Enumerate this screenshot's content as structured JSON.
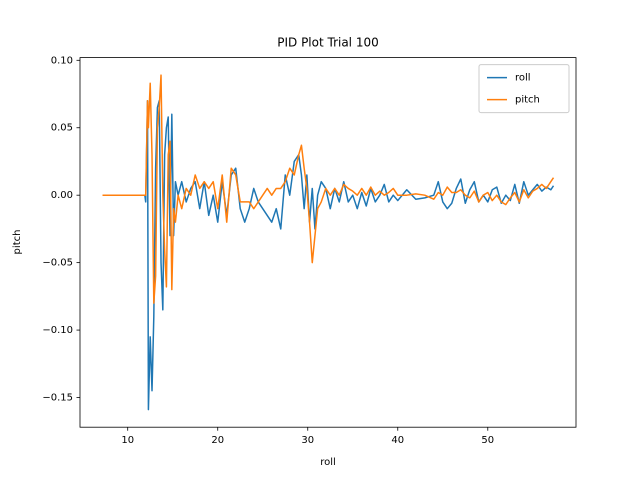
{
  "chart_data": {
    "type": "line",
    "title": "PID Plot Trial 100",
    "x_label": "roll",
    "y_label": "pitch",
    "x": [
      7.2,
      11.9,
      12.0,
      12.2,
      12.3,
      12.5,
      12.7,
      12.9,
      13.1,
      13.3,
      13.5,
      13.7,
      13.9,
      14.1,
      14.3,
      14.5,
      14.7,
      14.9,
      15.1,
      15.3,
      15.6,
      16.0,
      16.5,
      17.0,
      17.5,
      18.0,
      18.5,
      19.0,
      19.5,
      20.0,
      20.5,
      21.0,
      21.5,
      22.0,
      22.5,
      23.0,
      23.5,
      24.0,
      24.5,
      25.0,
      25.5,
      26.0,
      26.5,
      27.0,
      27.5,
      28.0,
      28.5,
      29.0,
      29.3,
      29.6,
      29.9,
      30.2,
      30.5,
      30.8,
      31.1,
      31.5,
      32.0,
      32.5,
      33.0,
      33.5,
      34.0,
      34.5,
      35.0,
      35.5,
      36.0,
      36.5,
      37.0,
      37.5,
      38.0,
      38.5,
      39.0,
      39.5,
      40.0,
      41.0,
      42.0,
      43.0,
      44.0,
      44.5,
      45.0,
      45.5,
      46.0,
      46.5,
      47.0,
      47.5,
      48.0,
      48.5,
      49.0,
      49.5,
      50.0,
      50.5,
      51.0,
      51.5,
      52.0,
      52.5,
      53.0,
      53.5,
      54.0,
      54.5,
      55.0,
      55.5,
      56.0,
      56.5,
      57.0,
      57.3
    ],
    "series": [
      {
        "name": "roll",
        "color": "#1f77b4",
        "values": [
          0,
          0,
          -0.005,
          0.07,
          -0.159,
          -0.105,
          -0.145,
          -0.09,
          0.02,
          0.065,
          0.07,
          -0.05,
          -0.085,
          0.03,
          0.05,
          0.058,
          -0.03,
          0.06,
          -0.03,
          0.01,
          0.0,
          0.01,
          -0.005,
          0.005,
          0.01,
          -0.01,
          0.01,
          -0.015,
          0.0,
          -0.02,
          0.01,
          -0.015,
          0.015,
          0.02,
          -0.01,
          -0.02,
          -0.01,
          0.005,
          -0.005,
          -0.01,
          -0.015,
          -0.02,
          -0.01,
          -0.025,
          0.015,
          0.0,
          0.025,
          0.03,
          0.015,
          -0.01,
          0.015,
          -0.02,
          0.005,
          -0.025,
          0.0,
          0.01,
          0.005,
          -0.01,
          0.005,
          -0.005,
          0.01,
          -0.005,
          0.0,
          -0.01,
          0.002,
          -0.008,
          0.005,
          -0.005,
          0.0,
          0.008,
          -0.005,
          0.0,
          -0.004,
          0.004,
          -0.003,
          -0.002,
          0.0,
          0.01,
          -0.005,
          -0.01,
          -0.006,
          0.005,
          0.012,
          -0.006,
          0.004,
          0.01,
          -0.005,
          0.0,
          -0.005,
          0.004,
          0.006,
          -0.006,
          0.0,
          -0.004,
          0.008,
          -0.006,
          0.01,
          0.0,
          0.004,
          0.008,
          0.003,
          0.006,
          0.004,
          0.007
        ]
      },
      {
        "name": "pitch",
        "color": "#ff7f0e",
        "values": [
          0,
          0,
          0.0,
          0.07,
          0.05,
          0.083,
          0.03,
          -0.08,
          -0.06,
          0.05,
          0.065,
          0.089,
          0.0,
          -0.04,
          -0.068,
          0.03,
          0.04,
          -0.07,
          -0.01,
          -0.02,
          0.0,
          -0.01,
          0.005,
          0.0,
          0.015,
          0.005,
          0.01,
          0.005,
          0.01,
          -0.01,
          0.015,
          -0.02,
          0.02,
          0.015,
          -0.005,
          -0.005,
          -0.005,
          -0.01,
          -0.005,
          0.0,
          0.005,
          0.0,
          0.005,
          0.005,
          0.01,
          0.02,
          0.015,
          0.03,
          0.037,
          0.02,
          0.005,
          -0.02,
          -0.05,
          -0.03,
          -0.01,
          -0.005,
          0.005,
          0.0,
          0.005,
          0.0,
          0.008,
          0.005,
          0.003,
          0.0,
          0.005,
          0.0,
          0.006,
          0.0,
          0.003,
          0.0,
          0.002,
          0.005,
          0.0,
          0.0,
          0.001,
          0.0,
          -0.003,
          0.002,
          0.0,
          0.006,
          0.002,
          0.002,
          0.004,
          0.0,
          -0.002,
          0.003,
          -0.005,
          0.0,
          0.002,
          -0.004,
          0.0,
          -0.005,
          -0.007,
          -0.002,
          0.002,
          -0.005,
          0.004,
          -0.002,
          0.003,
          0.005,
          0.008,
          0.005,
          0.01,
          0.013
        ]
      }
    ],
    "xlim": [
      4.7,
      59.8
    ],
    "ylim": [
      -0.172,
      0.102
    ],
    "xticks": [
      10,
      20,
      30,
      40,
      50
    ],
    "yticks": [
      {
        "value": -0.15,
        "label": "−0.15"
      },
      {
        "value": -0.1,
        "label": "−0.10"
      },
      {
        "value": -0.05,
        "label": "−0.05"
      },
      {
        "value": 0,
        "label": "0.00"
      },
      {
        "value": 0.05,
        "label": "0.05"
      },
      {
        "value": 0.1,
        "label": "0.10"
      }
    ],
    "grid": false,
    "legend": "upper right"
  }
}
